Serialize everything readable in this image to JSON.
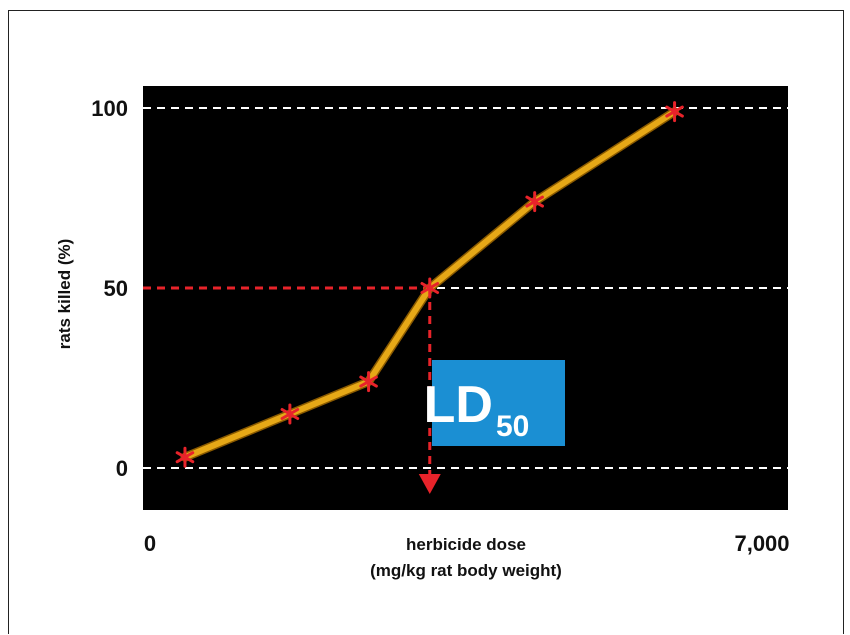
{
  "chart_data": {
    "type": "line",
    "title": "",
    "xlabel": "herbicide dose",
    "xlabel_line2": "(mg/kg rat body weight)",
    "ylabel": "rats killed (%)",
    "xlim": [
      0,
      7000
    ],
    "ylim": [
      0,
      100
    ],
    "x_ticks": [
      "0",
      "7,000"
    ],
    "y_ticks": [
      "0",
      "50",
      "100"
    ],
    "grid": "dashed horizontal at 0, 50, 100",
    "points": [
      {
        "x": 400,
        "y": 3
      },
      {
        "x": 1600,
        "y": 15
      },
      {
        "x": 2500,
        "y": 24
      },
      {
        "x": 3200,
        "y": 50
      },
      {
        "x": 4400,
        "y": 74
      },
      {
        "x": 6000,
        "y": 99
      }
    ],
    "annotation": {
      "label": "LD",
      "subscript": "50",
      "x": 3200,
      "y": 50
    },
    "colors": {
      "plot_bg": "#000000",
      "line": "#e6a817",
      "marker": "#e8232a",
      "ld_guide": "#e8232a",
      "ld_box": "#1b8fd3",
      "grid": "#ffffff"
    }
  }
}
